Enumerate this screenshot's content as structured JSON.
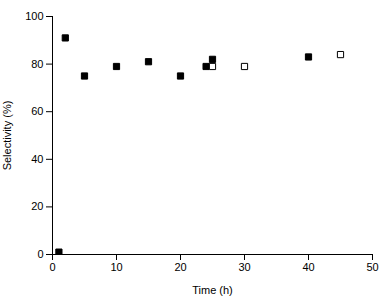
{
  "chart_data": {
    "type": "scatter",
    "xlabel": "Time (h)",
    "ylabel": "Selectivity (%)",
    "xlim": [
      0,
      50
    ],
    "ylim": [
      0,
      100
    ],
    "xticks": [
      0,
      10,
      20,
      30,
      40,
      50
    ],
    "yticks": [
      0,
      20,
      40,
      60,
      80,
      100
    ],
    "grid": false,
    "series": [
      {
        "color": "black",
        "marker": "square",
        "x": [
          1,
          2,
          5,
          10,
          15,
          20,
          24,
          25,
          40
        ],
        "values": [
          1,
          91,
          75,
          79,
          81,
          75,
          79,
          82,
          83
        ]
      },
      {
        "color": "black",
        "marker": "open-square",
        "x": [
          25,
          30,
          45
        ],
        "values": [
          79,
          79,
          84
        ]
      }
    ]
  }
}
